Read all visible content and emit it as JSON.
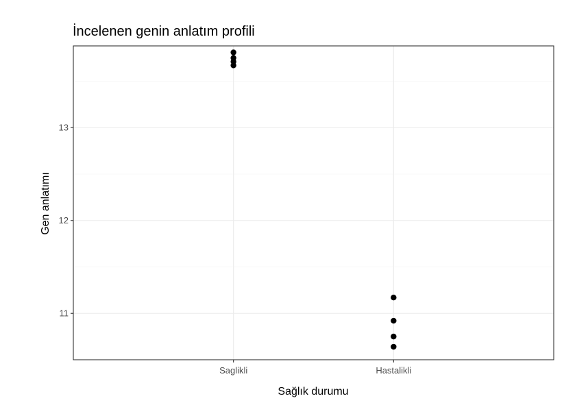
{
  "chart_data": {
    "type": "scatter",
    "title": "İncelenen genin anlatım profili",
    "xlabel": "Sağlık durumu",
    "ylabel": "Gen anlatımı",
    "categories": [
      "Saglikli",
      "Hastalikli"
    ],
    "ylim": [
      10.5,
      13.88
    ],
    "y_major_ticks": [
      11,
      12,
      13
    ],
    "y_minor_ticks": [
      10.5,
      11.5,
      12.5,
      13.5
    ],
    "grid": true,
    "series": [
      {
        "points": [
          {
            "category": "Saglikli",
            "y": 13.81
          },
          {
            "category": "Saglikli",
            "y": 13.75
          },
          {
            "category": "Saglikli",
            "y": 13.71
          },
          {
            "category": "Saglikli",
            "y": 13.67
          },
          {
            "category": "Hastalikli",
            "y": 11.17
          },
          {
            "category": "Hastalikli",
            "y": 10.92
          },
          {
            "category": "Hastalikli",
            "y": 10.75
          },
          {
            "category": "Hastalikli",
            "y": 10.64
          }
        ]
      }
    ],
    "point_color": "#000000"
  }
}
